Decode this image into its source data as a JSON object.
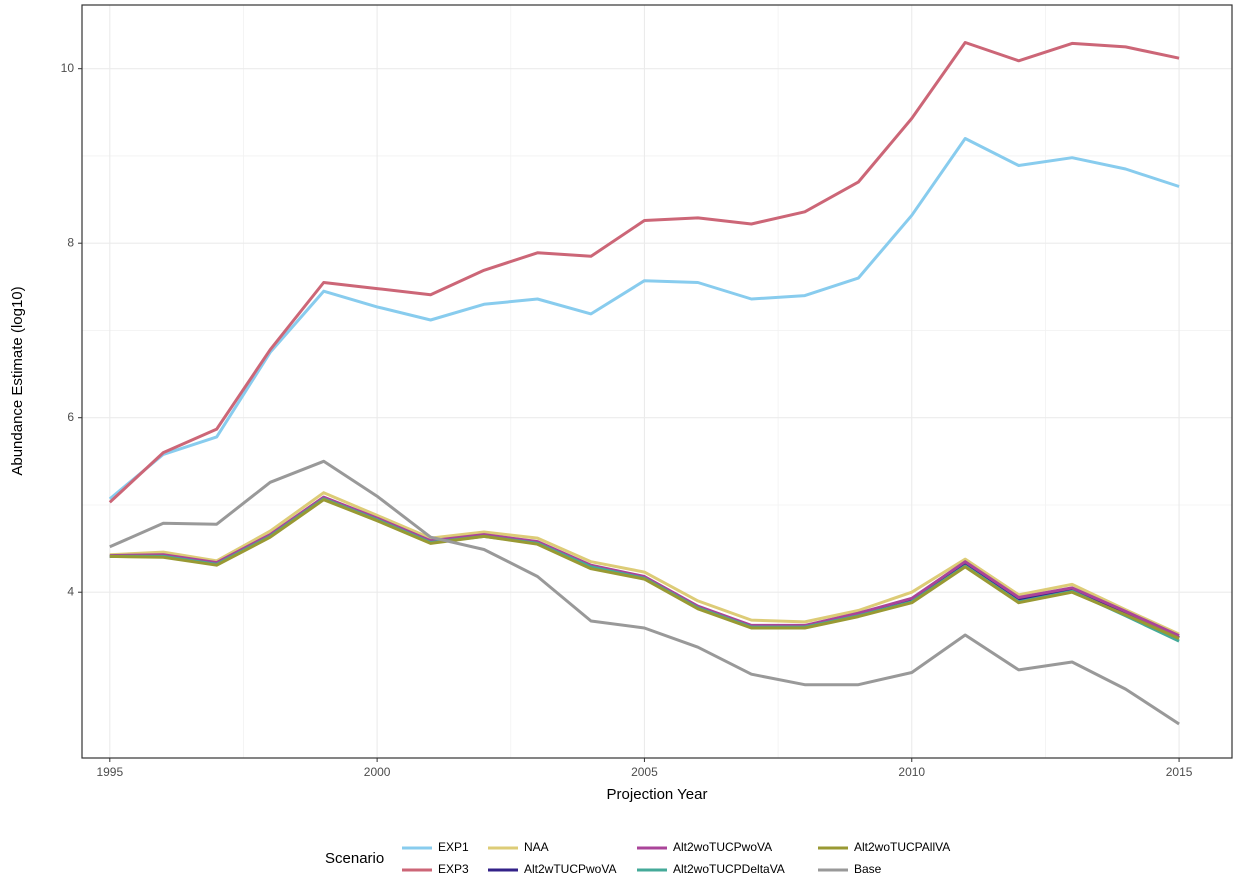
{
  "chart_data": {
    "type": "line",
    "x_label": "Projection Year",
    "y_label": "Abundance Estimate (log10)",
    "legend_title": "Scenario",
    "legend_position": "bottom",
    "grid": true,
    "x": [
      1995,
      1996,
      1997,
      1998,
      1999,
      2000,
      2001,
      2002,
      2003,
      2004,
      2005,
      2006,
      2007,
      2008,
      2009,
      2010,
      2011,
      2012,
      2013,
      2014,
      2015
    ],
    "xlim": [
      1994.48,
      2015.99
    ],
    "xticks": [
      1995,
      2000,
      2005,
      2010,
      2015
    ],
    "ylim": [
      2.1,
      10.73
    ],
    "yticks": [
      4,
      6,
      8,
      10
    ],
    "series": [
      {
        "name": "EXP1",
        "color": "#88ccee",
        "values": [
          5.07,
          5.58,
          5.78,
          6.75,
          7.45,
          7.27,
          7.12,
          7.3,
          7.36,
          7.19,
          7.57,
          7.55,
          7.36,
          7.4,
          7.6,
          8.32,
          9.2,
          8.89,
          8.98,
          8.85,
          8.65
        ]
      },
      {
        "name": "EXP3",
        "color": "#cc6677",
        "values": [
          5.03,
          5.6,
          5.87,
          6.78,
          7.55,
          7.48,
          7.41,
          7.69,
          7.89,
          7.85,
          8.26,
          8.29,
          8.22,
          8.36,
          8.7,
          9.43,
          10.3,
          10.09,
          10.29,
          10.25,
          10.12
        ]
      },
      {
        "name": "NAA",
        "color": "#ddcc77",
        "values": [
          4.43,
          4.46,
          4.36,
          4.7,
          5.14,
          4.88,
          4.62,
          4.69,
          4.62,
          4.35,
          4.23,
          3.9,
          3.68,
          3.66,
          3.79,
          4.0,
          4.38,
          3.97,
          4.09,
          3.8,
          3.52
        ]
      },
      {
        "name": "Alt2wTUCPwoVA",
        "color": "#332288",
        "values": [
          4.41,
          4.42,
          4.33,
          4.65,
          5.08,
          4.84,
          4.58,
          4.65,
          4.57,
          4.3,
          4.17,
          3.83,
          3.61,
          3.61,
          3.74,
          3.91,
          4.33,
          3.92,
          4.03,
          3.76,
          3.48
        ]
      },
      {
        "name": "Alt2woTUCPwoVA",
        "color": "#aa4499",
        "values": [
          4.42,
          4.43,
          4.34,
          4.66,
          5.09,
          4.85,
          4.59,
          4.66,
          4.58,
          4.31,
          4.18,
          3.84,
          3.62,
          3.62,
          3.76,
          3.93,
          4.35,
          3.94,
          4.05,
          3.78,
          3.5
        ]
      },
      {
        "name": "Alt2woTUCPDeltaVA",
        "color": "#44aa99",
        "values": [
          4.41,
          4.41,
          4.32,
          4.64,
          5.07,
          4.83,
          4.57,
          4.64,
          4.56,
          4.29,
          4.16,
          3.82,
          3.6,
          3.6,
          3.73,
          3.89,
          4.3,
          3.89,
          4.01,
          3.73,
          3.44
        ]
      },
      {
        "name": "Alt2woTUCPAllVA",
        "color": "#999933",
        "values": [
          4.41,
          4.4,
          4.31,
          4.63,
          5.06,
          4.82,
          4.56,
          4.64,
          4.55,
          4.27,
          4.15,
          3.81,
          3.59,
          3.59,
          3.72,
          3.88,
          4.29,
          3.88,
          4.0,
          3.74,
          3.47
        ]
      },
      {
        "name": "Base",
        "color": "#999999",
        "values": [
          4.52,
          4.79,
          4.78,
          5.26,
          5.5,
          5.1,
          4.63,
          4.49,
          4.18,
          3.67,
          3.59,
          3.37,
          3.06,
          2.94,
          2.94,
          3.08,
          3.51,
          3.11,
          3.2,
          2.89,
          2.49
        ]
      }
    ]
  }
}
